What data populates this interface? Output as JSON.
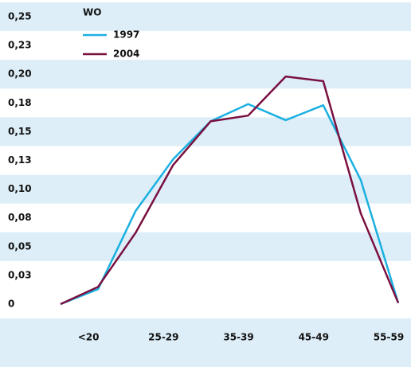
{
  "chart_data": {
    "type": "line",
    "legend_title": "WO",
    "categories": [
      null,
      "<20",
      null,
      "25-29",
      null,
      "35-39",
      null,
      "45-49",
      null,
      "55-59"
    ],
    "series": [
      {
        "name": "1997",
        "color": "#1ab0e0",
        "values": [
          0,
          0.013,
          0.081,
          0.126,
          0.159,
          0.174,
          0.16,
          0.173,
          0.108,
          0.001
        ]
      },
      {
        "name": "2004",
        "color": "#7a1040",
        "values": [
          0,
          0.015,
          0.062,
          0.121,
          0.159,
          0.164,
          0.198,
          0.194,
          0.079,
          0.001
        ]
      }
    ],
    "ylim": [
      0,
      0.25
    ],
    "yticks": [
      {
        "value": 0.25,
        "label": "0,25"
      },
      {
        "value": 0.225,
        "label": "0,23"
      },
      {
        "value": 0.2,
        "label": "0,20"
      },
      {
        "value": 0.175,
        "label": "0,18"
      },
      {
        "value": 0.15,
        "label": "0,15"
      },
      {
        "value": 0.125,
        "label": "0,13"
      },
      {
        "value": 0.1,
        "label": "0,10"
      },
      {
        "value": 0.075,
        "label": "0,08"
      },
      {
        "value": 0.05,
        "label": "0,05"
      },
      {
        "value": 0.025,
        "label": "0,03"
      },
      0
    ],
    "bands": true,
    "band_color": "#ddeef8"
  }
}
